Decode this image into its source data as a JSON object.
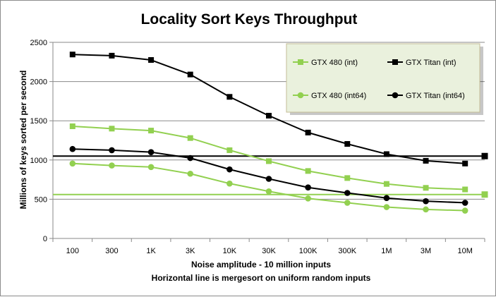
{
  "chart_data": {
    "type": "line",
    "title": "Locality Sort Keys Throughput",
    "xlabel": "Noise amplitude - 10 million inputs",
    "xlabel2": "Horizontal line is mergesort on uniform random inputs",
    "ylabel": "Millions of keys  sorted per second",
    "categories": [
      "100",
      "300",
      "1K",
      "3K",
      "10K",
      "30K",
      "100K",
      "300K",
      "1M",
      "3M",
      "10M"
    ],
    "yticks": [
      "0",
      "500",
      "1000",
      "1500",
      "2000",
      "2500"
    ],
    "ylim": [
      0,
      2500
    ],
    "grid": true,
    "legend_position": "top-right",
    "series": [
      {
        "name": "GTX 480 (int)",
        "color": "#92d050",
        "marker": "square",
        "values": [
          1430,
          1400,
          1375,
          1280,
          1125,
          985,
          860,
          770,
          695,
          645,
          625
        ]
      },
      {
        "name": "GTX Titan (int)",
        "color": "#000000",
        "marker": "square",
        "values": [
          2345,
          2330,
          2275,
          2090,
          1805,
          1565,
          1350,
          1205,
          1075,
          990,
          955
        ]
      },
      {
        "name": "GTX 480 (int64)",
        "color": "#92d050",
        "marker": "circle",
        "values": [
          955,
          930,
          910,
          825,
          700,
          600,
          510,
          455,
          400,
          370,
          355
        ]
      },
      {
        "name": "GTX Titan (int64)",
        "color": "#000000",
        "marker": "circle",
        "values": [
          1140,
          1125,
          1100,
          1025,
          880,
          760,
          650,
          580,
          515,
          475,
          455
        ]
      }
    ],
    "reference_lines": [
      {
        "series": "GTX Titan (int)",
        "value": 1050,
        "color": "#000000"
      },
      {
        "series": "GTX 480 (int)",
        "value": 560,
        "color": "#92d050"
      }
    ]
  }
}
